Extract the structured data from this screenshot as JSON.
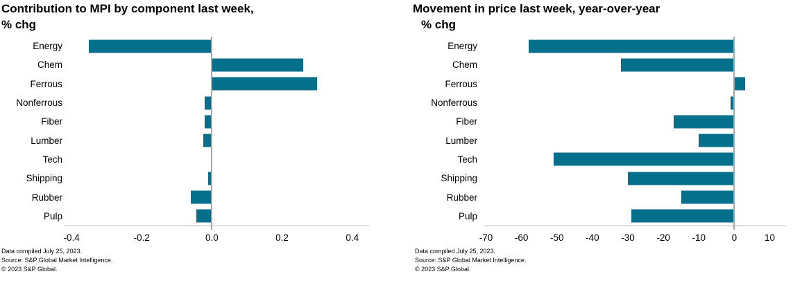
{
  "page": {
    "background": "#ffffff"
  },
  "charts": [
    {
      "footer_lines": [
        "Data compiled July 25, 2023.",
        "Source: S&P Global Market Intelligence.",
        "© 2023 S&P Global."
      ]
    },
    {
      "footer_lines": [
        "Data compiled July 25, 2023.",
        "Source: S&P Global Market Intelligence.",
        "© 2023 S&P Global."
      ]
    }
  ],
  "chart_data": [
    {
      "type": "bar",
      "orientation": "horizontal",
      "title": "Contribution to MPI by component last week, % chg",
      "title_lines": [
        "Contribution to MPI by component last week,",
        "% chg"
      ],
      "categories": [
        "Energy",
        "Chem",
        "Ferrous",
        "Nonferrous",
        "Fiber",
        "Lumber",
        "Tech",
        "Shipping",
        "Rubber",
        "Pulp"
      ],
      "values": [
        -0.35,
        0.26,
        0.3,
        -0.02,
        -0.02,
        -0.025,
        0.0,
        -0.01,
        -0.06,
        -0.045
      ],
      "xlim": [
        -0.42,
        0.45
      ],
      "xticks": [
        -0.4,
        -0.2,
        0.0,
        0.2,
        0.4
      ],
      "xtick_labels": [
        "-0.4",
        "-0.2",
        "0.0",
        "0.2",
        "0.4"
      ],
      "bar_color": "#05708C",
      "axis_color": "#B2B2B2",
      "zero_line_color": "#A6A6A6",
      "grid": false,
      "legend": "none"
    },
    {
      "type": "bar",
      "orientation": "horizontal",
      "title": "Movement in price last week, year-over-year % chg",
      "title_lines": [
        "Movement in price last week, year-over-year",
        "% chg"
      ],
      "categories": [
        "Energy",
        "Chem",
        "Ferrous",
        "Nonferrous",
        "Fiber",
        "Lumber",
        "Tech",
        "Shipping",
        "Rubber",
        "Pulp"
      ],
      "values": [
        -58,
        -32,
        3,
        -1,
        -17,
        -10,
        -51,
        -30,
        -15,
        -29
      ],
      "xlim": [
        -70.5,
        14.6
      ],
      "xticks": [
        -70,
        -60,
        -50,
        -40,
        -30,
        -20,
        -10,
        0,
        10
      ],
      "xtick_labels": [
        "-70",
        "-60",
        "-50",
        "-40",
        "-30",
        "-20",
        "-10",
        "0",
        "10"
      ],
      "bar_color": "#05708C",
      "axis_color": "#B2B2B2",
      "zero_line_color": "#A6A6A6",
      "grid": false,
      "legend": "none"
    }
  ]
}
